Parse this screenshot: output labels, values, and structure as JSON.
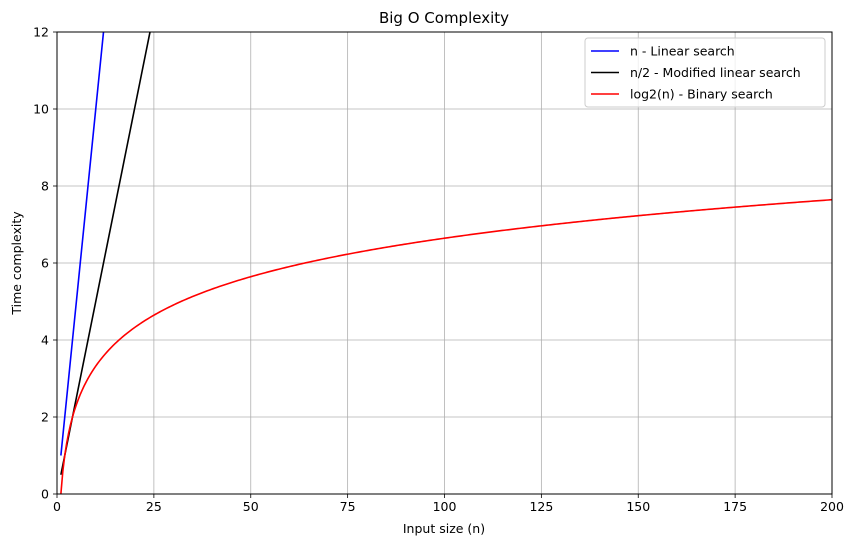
{
  "chart_data": {
    "type": "line",
    "title": "Big O Complexity",
    "xlabel": "Input size (n)",
    "ylabel": "Time complexity",
    "xlim": [
      0,
      200
    ],
    "ylim": [
      0,
      12
    ],
    "xticks": [
      0,
      25,
      50,
      75,
      100,
      125,
      150,
      175,
      200
    ],
    "yticks": [
      0,
      2,
      4,
      6,
      8,
      10,
      12
    ],
    "grid": true,
    "legend_position": "top-right",
    "series": [
      {
        "name": "n - Linear search",
        "color": "#0000ff",
        "function": "n",
        "x_range": [
          1,
          200
        ],
        "x": [
          1,
          12
        ],
        "y": [
          1,
          12
        ]
      },
      {
        "name": "n/2 - Modified linear search",
        "color": "#000000",
        "function": "n/2",
        "x_range": [
          1,
          200
        ],
        "x": [
          1,
          24
        ],
        "y": [
          0.5,
          12
        ]
      },
      {
        "name": "log2(n) - Binary search",
        "color": "#ff0000",
        "function": "log2(n)",
        "x_range": [
          1,
          200
        ],
        "x": [
          1,
          2,
          4,
          8,
          16,
          32,
          64,
          128,
          200
        ],
        "y": [
          0,
          1,
          2,
          3,
          4,
          5,
          6,
          7,
          7.64
        ]
      }
    ]
  }
}
